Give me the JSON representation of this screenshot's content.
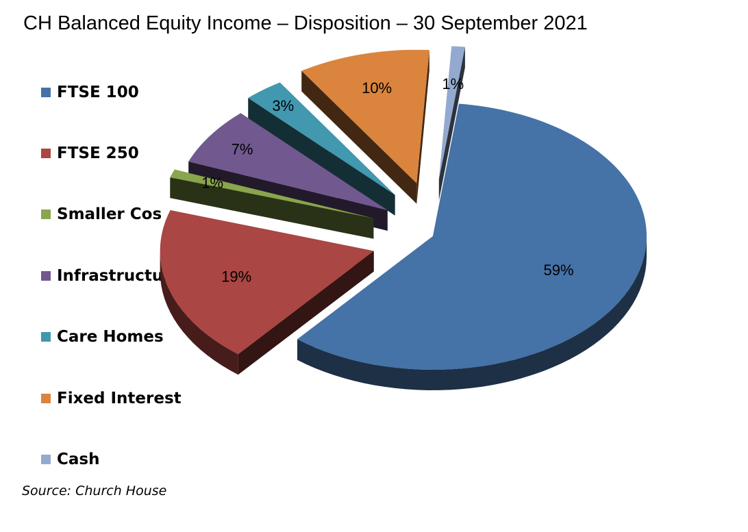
{
  "chart_data": {
    "type": "pie",
    "title": "CH Balanced Equity Income – Disposition – 30 September 2021",
    "legend_position": "left",
    "style": "3d-exploded",
    "series": [
      {
        "name": "FTSE 100",
        "value": 59,
        "label": "59%",
        "color": "#4572A7"
      },
      {
        "name": "FTSE 250",
        "value": 19,
        "label": "19%",
        "color": "#AA4643"
      },
      {
        "name": "Smaller Cos",
        "value": 1,
        "label": "1%",
        "color": "#89A54E"
      },
      {
        "name": "Infrastructure",
        "value": 7,
        "label": "7%",
        "color": "#71588F"
      },
      {
        "name": "Care Homes",
        "value": 3,
        "label": "3%",
        "color": "#4198AF"
      },
      {
        "name": "Fixed Interest",
        "value": 10,
        "label": "10%",
        "color": "#DB843D"
      },
      {
        "name": "Cash",
        "value": 1,
        "label": "1%",
        "color": "#93A9CF"
      }
    ]
  },
  "source": "Source: Church House"
}
